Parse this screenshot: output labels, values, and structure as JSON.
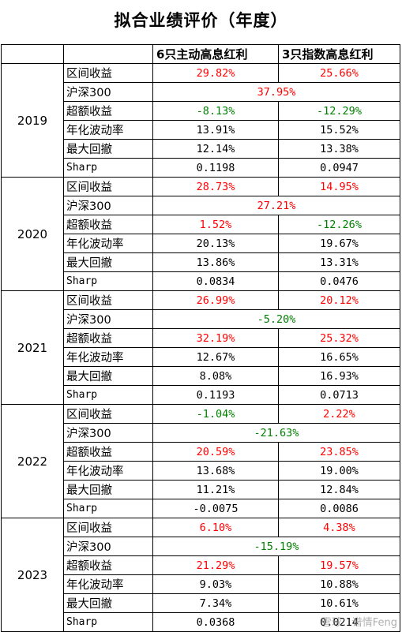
{
  "title": "拟合业绩评价（年度）",
  "header": {
    "col1": "6只主动高息红利",
    "col2": "3只指数高息红利"
  },
  "colors": {
    "positive": "#ff0000",
    "negative": "#008000",
    "neutral": "#000000"
  },
  "years": [
    {
      "year": "2019",
      "return": {
        "a": "29.82%",
        "b": "25.66%"
      },
      "hs300": "37.95%",
      "excess": {
        "a": "-8.13%",
        "b": "-12.29%"
      },
      "vol": {
        "a": "13.91%",
        "b": "15.52%"
      },
      "mdd": {
        "a": "12.14%",
        "b": "13.38%"
      },
      "sharp": {
        "a": "0.1198",
        "b": "0.0947"
      }
    },
    {
      "year": "2020",
      "return": {
        "a": "28.73%",
        "b": "14.95%"
      },
      "hs300": "27.21%",
      "excess": {
        "a": "1.52%",
        "b": "-12.26%"
      },
      "vol": {
        "a": "20.13%",
        "b": "19.67%"
      },
      "mdd": {
        "a": "13.86%",
        "b": "13.31%"
      },
      "sharp": {
        "a": "0.0834",
        "b": "0.0476"
      }
    },
    {
      "year": "2021",
      "return": {
        "a": "26.99%",
        "b": "20.12%"
      },
      "hs300": "-5.20%",
      "excess": {
        "a": "32.19%",
        "b": "25.32%"
      },
      "vol": {
        "a": "12.67%",
        "b": "16.65%"
      },
      "mdd": {
        "a": "8.08%",
        "b": "16.93%"
      },
      "sharp": {
        "a": "0.1193",
        "b": "0.0713"
      }
    },
    {
      "year": "2022",
      "return": {
        "a": "-1.04%",
        "b": "2.22%"
      },
      "hs300": "-21.63%",
      "excess": {
        "a": "20.59%",
        "b": "23.85%"
      },
      "vol": {
        "a": "13.68%",
        "b": "19.00%"
      },
      "mdd": {
        "a": "11.21%",
        "b": "12.84%"
      },
      "sharp": {
        "a": "-0.0075",
        "b": "0.0086"
      }
    },
    {
      "year": "2023",
      "return": {
        "a": "6.10%",
        "b": "4.38%"
      },
      "hs300": "-15.19%",
      "excess": {
        "a": "21.29%",
        "b": "19.57%"
      },
      "vol": {
        "a": "9.03%",
        "b": "10.88%"
      },
      "mdd": {
        "a": "7.34%",
        "b": "10.61%"
      },
      "sharp": {
        "a": "0.0368",
        "b": "0.0214"
      }
    }
  ],
  "row_labels": {
    "return": "区间收益",
    "hs300": "沪深300",
    "excess": "超额收益",
    "vol": "年化波动率",
    "mdd": "最大回撤",
    "sharp": "Sharp"
  },
  "watermark": "雪球：谱情Feng"
}
